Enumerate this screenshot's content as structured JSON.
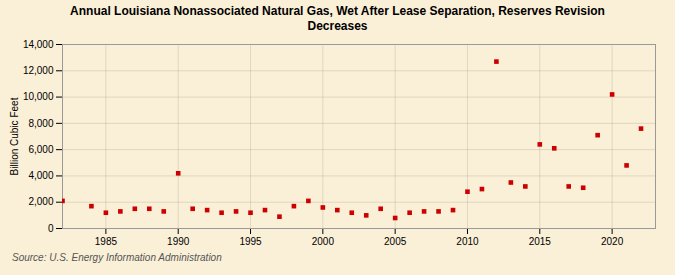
{
  "chart_data": {
    "type": "scatter",
    "title": "Annual Louisiana Nonassociated Natural Gas, Wet After Lease Separation, Reserves Revision\nDecreases",
    "ylabel": "Billion Cubic Feet",
    "source": "Source: U.S. Energy Information Administration",
    "color": "#cc0000",
    "marker": "square",
    "grid": true,
    "x": [
      1982,
      1984,
      1985,
      1986,
      1987,
      1988,
      1989,
      1990,
      1991,
      1992,
      1993,
      1994,
      1995,
      1996,
      1997,
      1998,
      1999,
      2000,
      2001,
      2002,
      2003,
      2004,
      2005,
      2006,
      2007,
      2008,
      2009,
      2010,
      2011,
      2012,
      2013,
      2014,
      2015,
      2016,
      2017,
      2018,
      2019,
      2020,
      2021,
      2022
    ],
    "values": [
      2100,
      1700,
      1200,
      1300,
      1500,
      1500,
      1300,
      4200,
      1500,
      1400,
      1200,
      1300,
      1200,
      1400,
      900,
      1700,
      2100,
      1600,
      1400,
      1200,
      1000,
      1500,
      800,
      1200,
      1300,
      1300,
      1400,
      2800,
      3000,
      12700,
      3500,
      3200,
      6400,
      6100,
      3200,
      3100,
      7100,
      10200,
      4800,
      7600
    ],
    "xlim": [
      1982,
      2023
    ],
    "xticks": [
      1985,
      1990,
      1995,
      2000,
      2005,
      2010,
      2015,
      2020
    ],
    "ylim": [
      0,
      14000
    ],
    "yticks": [
      0,
      {
        "value": 2000,
        "label": "2,000"
      },
      {
        "value": 4000,
        "label": "4,000"
      },
      {
        "value": 6000,
        "label": "6,000"
      },
      {
        "value": 8000,
        "label": "8,000"
      },
      {
        "value": 10000,
        "label": "10,000"
      },
      {
        "value": 12000,
        "label": "12,000"
      },
      {
        "value": 14000,
        "label": "14,000"
      }
    ]
  }
}
